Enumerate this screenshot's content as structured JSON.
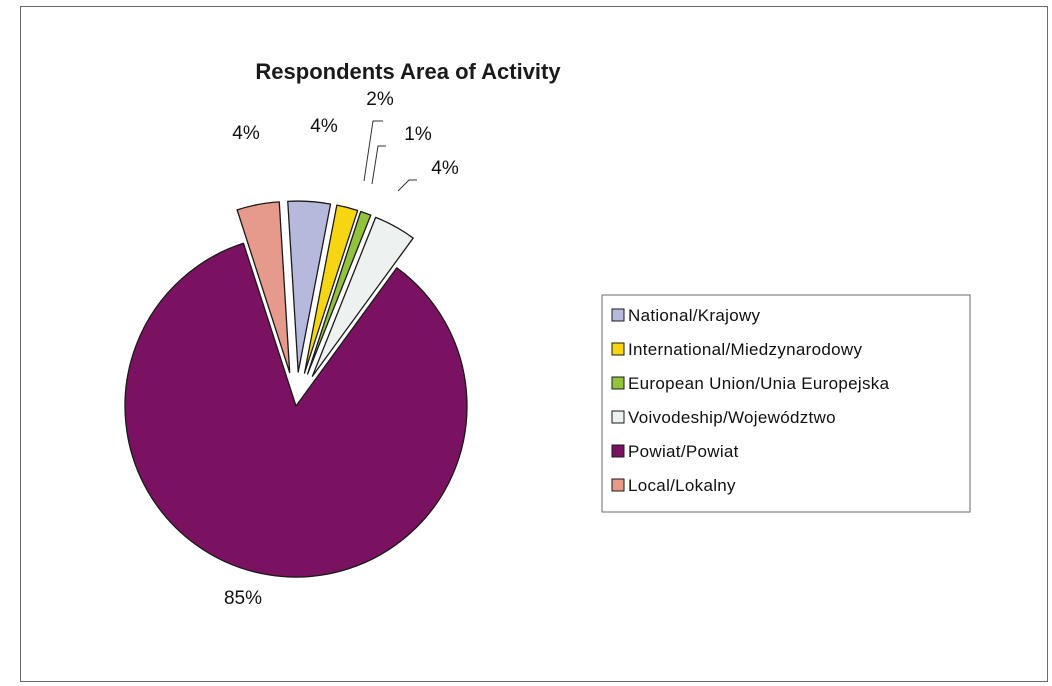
{
  "chart_data": {
    "type": "pie",
    "title": "Respondents Area of Activity",
    "slices": [
      {
        "label": "National/Krajowy",
        "value": 4,
        "value_label": "4%",
        "color": "#b6b9dc"
      },
      {
        "label": "International/Miedzynarodowy",
        "value": 2,
        "value_label": "2%",
        "color": "#f6d612"
      },
      {
        "label": "European Union/Unia Europejska",
        "value": 1,
        "value_label": "1%",
        "color": "#93c23c"
      },
      {
        "label": "Voivodeship/Województwo",
        "value": 4,
        "value_label": "4%",
        "color": "#edf1ef"
      },
      {
        "label": "Powiat/Powiat",
        "value": 85,
        "value_label": "85%",
        "color": "#7b1261"
      },
      {
        "label": "Local/Lokalny",
        "value": 4,
        "value_label": "4%",
        "color": "#e59a8c"
      }
    ],
    "exploded": true,
    "legend_position": "right"
  }
}
